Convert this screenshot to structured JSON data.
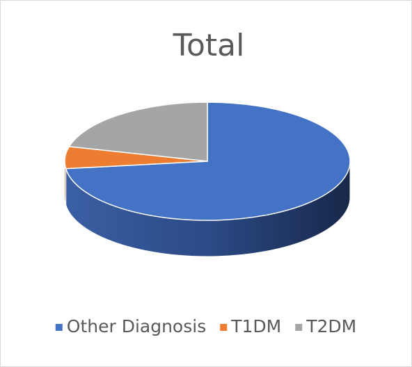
{
  "chart_data": {
    "type": "pie3d",
    "title": "Total",
    "categories": [
      "Other Diagnosis",
      "T1DM",
      "T2DM"
    ],
    "values": [
      73,
      6,
      21
    ],
    "colors": [
      "#4472c4",
      "#ed7d31",
      "#a5a5a5"
    ],
    "legend": "bottom"
  }
}
